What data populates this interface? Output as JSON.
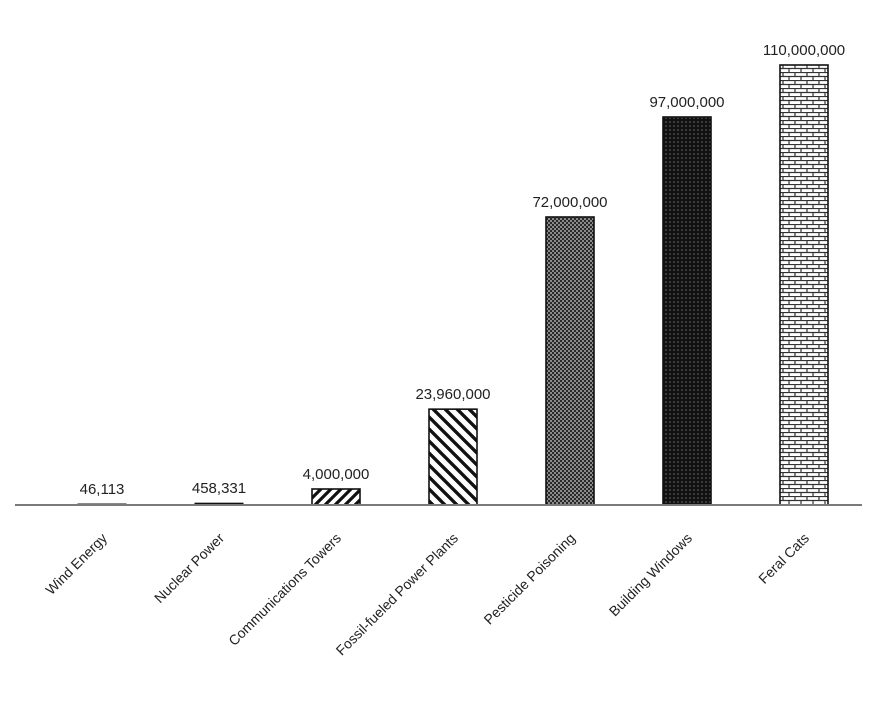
{
  "chart_data": {
    "type": "bar",
    "categories": [
      "Wind Energy",
      "Nuclear Power",
      "Communications Towers",
      "Fossil-fueled Power Plants",
      "Pesticide Poisoning",
      "Building Windows",
      "Feral Cats"
    ],
    "values": [
      46113,
      458331,
      4000000,
      23960000,
      72000000,
      97000000,
      110000000
    ],
    "value_labels": [
      "46,113",
      "458,331",
      "4,000,000",
      "23,960,000",
      "72,000,000",
      "97,000,000",
      "110,000,000"
    ],
    "patterns": [
      "light-diagonal",
      "solid-dark",
      "diagonal-hatch",
      "diagonal-hatch-wide",
      "fine-checker",
      "dark-dots",
      "brick"
    ],
    "ylim": [
      0,
      110000000
    ],
    "grid": false,
    "legend": "none",
    "title": "",
    "xlabel": "",
    "ylabel": ""
  }
}
